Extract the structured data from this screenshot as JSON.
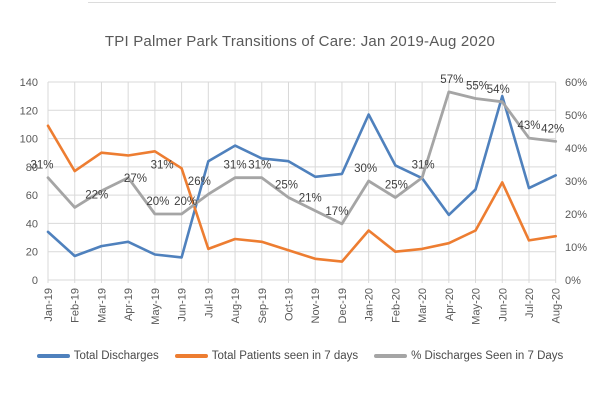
{
  "chart_data": {
    "type": "line",
    "title": "TPI Palmer Park Transitions of Care: Jan 2019-Aug 2020",
    "categories": [
      "Jan-19",
      "Feb-19",
      "Mar-19",
      "Apr-19",
      "May-19",
      "Jun-19",
      "Jul-19",
      "Aug-19",
      "Sep-19",
      "Oct-19",
      "Nov-19",
      "Dec-19",
      "Jan-20",
      "Feb-20",
      "Mar-20",
      "Apr-20",
      "May-20",
      "Jun-20",
      "Jul-20",
      "Aug-20"
    ],
    "series": [
      {
        "name": "Total Discharges",
        "axis": "left",
        "color": "#4F81BD",
        "values": [
          34,
          17,
          24,
          27,
          18,
          16,
          84,
          95,
          86,
          84,
          73,
          75,
          117,
          81,
          72,
          46,
          64,
          130,
          65,
          74
        ]
      },
      {
        "name": "Total Patients seen in 7 days",
        "axis": "left",
        "color": "#ED7D31",
        "values": [
          109,
          77,
          90,
          88,
          91,
          79,
          22,
          29,
          27,
          21,
          15,
          13,
          35,
          20,
          22,
          26,
          35,
          69,
          28,
          31
        ]
      },
      {
        "name": "% Discharges Seen in 7 Days",
        "axis": "right",
        "color": "#A5A5A5",
        "values": [
          31,
          22,
          27,
          31,
          20,
          20,
          26,
          31,
          31,
          25,
          21,
          17,
          30,
          25,
          31,
          57,
          55,
          54,
          43,
          42
        ],
        "data_labels": [
          "31%",
          "22%",
          "27%",
          "31%",
          "20%",
          "20%",
          "26%",
          "31%",
          "31%",
          "25%",
          "21%",
          "17%",
          "30%",
          "25%",
          "31%",
          "57%",
          "55%",
          "54%",
          "43%",
          "42%"
        ]
      }
    ],
    "left_axis": {
      "min": 0,
      "max": 140,
      "ticks": [
        "0",
        "20",
        "40",
        "60",
        "80",
        "100",
        "120",
        "140"
      ]
    },
    "right_axis": {
      "min": 0,
      "max": 60,
      "ticks": [
        "0%",
        "10%",
        "20%",
        "30%",
        "40%",
        "50%",
        "60%"
      ]
    },
    "grid": true,
    "legend_position": "bottom"
  }
}
